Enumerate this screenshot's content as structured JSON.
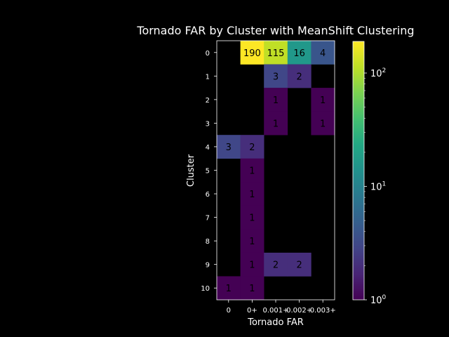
{
  "chart_data": {
    "type": "heatmap",
    "title": "Tornado FAR by Cluster with MeanShift Clustering",
    "xlabel": "Tornado FAR",
    "ylabel": "Cluster",
    "x_categories": [
      "0",
      "0+",
      "0.001+",
      "0.002+",
      "0.003+"
    ],
    "y_categories": [
      "0",
      "1",
      "2",
      "3",
      "4",
      "5",
      "6",
      "7",
      "8",
      "9",
      "10"
    ],
    "values": [
      [
        null,
        190,
        115,
        16,
        4
      ],
      [
        null,
        null,
        3,
        2,
        null
      ],
      [
        null,
        null,
        1,
        null,
        1
      ],
      [
        null,
        null,
        1,
        null,
        1
      ],
      [
        3,
        2,
        null,
        null,
        null
      ],
      [
        null,
        1,
        null,
        null,
        null
      ],
      [
        null,
        1,
        null,
        null,
        null
      ],
      [
        null,
        1,
        null,
        null,
        null
      ],
      [
        null,
        1,
        null,
        null,
        null
      ],
      [
        null,
        1,
        2,
        2,
        null
      ],
      [
        1,
        1,
        null,
        null,
        null
      ]
    ],
    "colorscale": "viridis",
    "color_scale_type": "log",
    "color_range": [
      1,
      190
    ],
    "colorbar_ticks": [
      {
        "value": 1,
        "base": "10",
        "exp": "0"
      },
      {
        "value": 10,
        "base": "10",
        "exp": "1"
      },
      {
        "value": 100,
        "base": "10",
        "exp": "2"
      }
    ],
    "empty_cell_color": "#000000",
    "background": "#000000"
  }
}
